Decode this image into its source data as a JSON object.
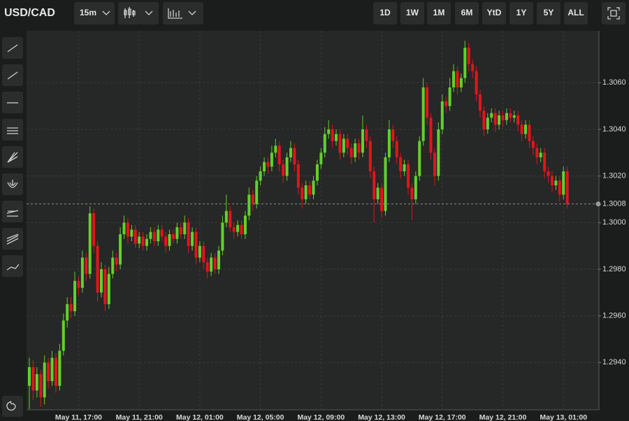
{
  "toolbar": {
    "symbol": "USD/CAD",
    "interval": "15m",
    "ranges": [
      "1D",
      "1W",
      "1M",
      "6M",
      "YtD",
      "1Y",
      "5Y",
      "ALL"
    ]
  },
  "chart_data": {
    "type": "candlestick",
    "up_color": "#62d12c",
    "down_color": "#e3141c",
    "grid": true,
    "ylim": [
      1.292,
      1.3082
    ],
    "yticks": [
      {
        "value": 1.294,
        "label": "1.2940"
      },
      {
        "value": 1.296,
        "label": "1.2960"
      },
      {
        "value": 1.298,
        "label": "1.2980"
      },
      {
        "value": 1.3,
        "label": "1.3000"
      },
      {
        "value": 1.302,
        "label": "1.3020"
      },
      {
        "value": 1.304,
        "label": "1.3040"
      },
      {
        "value": 1.306,
        "label": "1.3060"
      }
    ],
    "last_price": 1.3008,
    "categories": [
      null,
      null,
      null,
      null,
      null,
      null,
      null,
      null,
      null,
      null,
      null,
      null,
      null,
      "May 11, 17:00",
      null,
      null,
      null,
      null,
      null,
      null,
      null,
      null,
      null,
      null,
      null,
      null,
      null,
      null,
      null,
      "May 11, 21:00",
      null,
      null,
      null,
      null,
      null,
      null,
      null,
      null,
      null,
      null,
      null,
      null,
      null,
      null,
      null,
      "May 12, 01:00",
      null,
      null,
      null,
      null,
      null,
      null,
      null,
      null,
      null,
      null,
      null,
      null,
      null,
      null,
      null,
      "May 12, 05:00",
      null,
      null,
      null,
      null,
      null,
      null,
      null,
      null,
      null,
      null,
      null,
      null,
      null,
      null,
      null,
      "May 12, 09:00",
      null,
      null,
      null,
      null,
      null,
      null,
      null,
      null,
      null,
      null,
      null,
      null,
      null,
      null,
      null,
      "May 12, 13:00",
      null,
      null,
      null,
      null,
      null,
      null,
      null,
      null,
      null,
      null,
      null,
      null,
      null,
      null,
      null,
      "May 12, 17:00",
      null,
      null,
      null,
      null,
      null,
      null,
      null,
      null,
      null,
      null,
      null,
      null,
      null,
      null,
      null,
      "May 12, 21:00",
      null,
      null,
      null,
      null,
      null,
      null,
      null,
      null,
      null,
      null,
      null,
      null,
      null,
      null,
      null,
      "May 13, 01:00",
      null
    ],
    "ohlc": [
      [
        1.293,
        1.2942,
        1.292,
        1.2938
      ],
      [
        1.2938,
        1.2941,
        1.2924,
        1.2928
      ],
      [
        1.2928,
        1.2938,
        1.2925,
        1.2935
      ],
      [
        1.2935,
        1.2937,
        1.2921,
        1.2925
      ],
      [
        1.2925,
        1.2943,
        1.2922,
        1.294
      ],
      [
        1.294,
        1.2942,
        1.2929,
        1.2932
      ],
      [
        1.2932,
        1.2945,
        1.293,
        1.2942
      ],
      [
        1.2942,
        1.2944,
        1.2927,
        1.293
      ],
      [
        1.293,
        1.2948,
        1.2928,
        1.2945
      ],
      [
        1.2945,
        1.2961,
        1.2943,
        1.2958
      ],
      [
        1.2958,
        1.2968,
        1.2955,
        1.2965
      ],
      [
        1.2965,
        1.2968,
        1.2959,
        1.2962
      ],
      [
        1.2962,
        1.2979,
        1.296,
        1.2975
      ],
      [
        1.2975,
        1.2977,
        1.2969,
        1.2972
      ],
      [
        1.2972,
        1.2988,
        1.297,
        1.2985
      ],
      [
        1.2985,
        1.2987,
        1.2975,
        1.2978
      ],
      [
        1.2978,
        1.3007,
        1.2976,
        1.3004
      ],
      [
        1.3004,
        1.3006,
        1.2987,
        1.299
      ],
      [
        1.299,
        1.2992,
        1.2966,
        1.297
      ],
      [
        1.297,
        1.2983,
        1.2968,
        1.298
      ],
      [
        1.298,
        1.2982,
        1.2962,
        1.2965
      ],
      [
        1.2965,
        1.2981,
        1.2963,
        1.2978
      ],
      [
        1.2978,
        1.2988,
        1.2976,
        1.2985
      ],
      [
        1.2985,
        1.2987,
        1.2979,
        1.2982
      ],
      [
        1.2982,
        1.2998,
        1.298,
        1.2995
      ],
      [
        1.2995,
        1.3003,
        1.2993,
        1.3
      ],
      [
        1.3,
        1.3002,
        1.2991,
        1.2994
      ],
      [
        1.2994,
        1.2999,
        1.2992,
        1.2997
      ],
      [
        1.2997,
        1.2999,
        1.2989,
        1.2991
      ],
      [
        1.2991,
        1.2996,
        1.2989,
        1.2994
      ],
      [
        1.2994,
        1.2996,
        1.2988,
        1.299
      ],
      [
        1.299,
        1.2995,
        1.2988,
        1.2993
      ],
      [
        1.2993,
        1.2998,
        1.2991,
        1.2996
      ],
      [
        1.2996,
        1.2998,
        1.299,
        1.2992
      ],
      [
        1.2992,
        1.2999,
        1.299,
        1.2997
      ],
      [
        1.2997,
        1.2999,
        1.2992,
        1.2994
      ],
      [
        1.2994,
        1.2996,
        1.2987,
        1.299
      ],
      [
        1.299,
        1.2997,
        1.2988,
        1.2995
      ],
      [
        1.2995,
        1.2997,
        1.2991,
        1.2993
      ],
      [
        1.2993,
        1.3,
        1.2991,
        1.2998
      ],
      [
        1.2998,
        1.3,
        1.2993,
        1.2995
      ],
      [
        1.2995,
        1.3003,
        1.2993,
        1.3
      ],
      [
        1.3,
        1.3002,
        1.2987,
        1.299
      ],
      [
        1.299,
        1.2998,
        1.2988,
        1.2996
      ],
      [
        1.2996,
        1.2998,
        1.2982,
        1.2985
      ],
      [
        1.2985,
        1.2992,
        1.2983,
        1.299
      ],
      [
        1.299,
        1.2992,
        1.298,
        1.2983
      ],
      [
        1.2983,
        1.2985,
        1.2976,
        1.2979
      ],
      [
        1.2979,
        1.2987,
        1.2977,
        1.2985
      ],
      [
        1.2985,
        1.2987,
        1.2978,
        1.298
      ],
      [
        1.298,
        1.299,
        1.2978,
        1.2988
      ],
      [
        1.2988,
        1.3003,
        1.2986,
        1.3
      ],
      [
        1.3,
        1.3012,
        1.2998,
        1.3005
      ],
      [
        1.3005,
        1.3007,
        1.2996,
        1.2998
      ],
      [
        1.2998,
        1.3,
        1.2993,
        1.2996
      ],
      [
        1.2996,
        1.3001,
        1.2994,
        1.2999
      ],
      [
        1.2999,
        1.3001,
        1.2993,
        1.2995
      ],
      [
        1.2995,
        1.3005,
        1.2993,
        1.3003
      ],
      [
        1.3003,
        1.3015,
        1.3001,
        1.3012
      ],
      [
        1.3012,
        1.3014,
        1.3005,
        1.3008
      ],
      [
        1.3008,
        1.302,
        1.3006,
        1.3018
      ],
      [
        1.3018,
        1.3024,
        1.3016,
        1.3022
      ],
      [
        1.3022,
        1.3028,
        1.302,
        1.3026
      ],
      [
        1.3026,
        1.3028,
        1.3021,
        1.3024
      ],
      [
        1.3024,
        1.3033,
        1.3022,
        1.303
      ],
      [
        1.303,
        1.3036,
        1.3028,
        1.3033
      ],
      [
        1.3033,
        1.3035,
        1.3022,
        1.3025
      ],
      [
        1.3025,
        1.3027,
        1.3017,
        1.302
      ],
      [
        1.302,
        1.303,
        1.3018,
        1.3028
      ],
      [
        1.3028,
        1.3035,
        1.3026,
        1.3032
      ],
      [
        1.3032,
        1.3034,
        1.3022,
        1.3025
      ],
      [
        1.3025,
        1.3027,
        1.3012,
        1.3015
      ],
      [
        1.3015,
        1.3017,
        1.3006,
        1.301
      ],
      [
        1.301,
        1.3018,
        1.3008,
        1.3016
      ],
      [
        1.3016,
        1.3018,
        1.301,
        1.3012
      ],
      [
        1.3012,
        1.302,
        1.301,
        1.3018
      ],
      [
        1.3018,
        1.3027,
        1.3016,
        1.3025
      ],
      [
        1.3025,
        1.3032,
        1.3023,
        1.303
      ],
      [
        1.303,
        1.3041,
        1.3028,
        1.3038
      ],
      [
        1.3038,
        1.3044,
        1.3036,
        1.304
      ],
      [
        1.304,
        1.3042,
        1.3032,
        1.3035
      ],
      [
        1.3035,
        1.304,
        1.3033,
        1.3038
      ],
      [
        1.3038,
        1.304,
        1.3027,
        1.303
      ],
      [
        1.303,
        1.3038,
        1.3028,
        1.3036
      ],
      [
        1.3036,
        1.3038,
        1.3029,
        1.3032
      ],
      [
        1.3032,
        1.3034,
        1.3025,
        1.3028
      ],
      [
        1.3028,
        1.3036,
        1.3026,
        1.3034
      ],
      [
        1.3034,
        1.3036,
        1.3027,
        1.303
      ],
      [
        1.303,
        1.3046,
        1.3028,
        1.304
      ],
      [
        1.304,
        1.3042,
        1.3032,
        1.3035
      ],
      [
        1.3035,
        1.3037,
        1.3019,
        1.3022
      ],
      [
        1.3022,
        1.3024,
        1.3,
        1.301
      ],
      [
        1.301,
        1.3017,
        1.3008,
        1.3015
      ],
      [
        1.3015,
        1.3017,
        1.3002,
        1.3005
      ],
      [
        1.3005,
        1.303,
        1.3003,
        1.3028
      ],
      [
        1.3028,
        1.3044,
        1.3026,
        1.304
      ],
      [
        1.304,
        1.3042,
        1.3032,
        1.3035
      ],
      [
        1.3035,
        1.3037,
        1.3025,
        1.3028
      ],
      [
        1.3028,
        1.303,
        1.3019,
        1.3022
      ],
      [
        1.3022,
        1.3027,
        1.302,
        1.3025
      ],
      [
        1.3025,
        1.3027,
        1.3012,
        1.3015
      ],
      [
        1.3015,
        1.3017,
        1.3001,
        1.301
      ],
      [
        1.301,
        1.3022,
        1.3008,
        1.302
      ],
      [
        1.302,
        1.3037,
        1.3018,
        1.3035
      ],
      [
        1.3035,
        1.3062,
        1.3033,
        1.3058
      ],
      [
        1.3058,
        1.306,
        1.3042,
        1.3045
      ],
      [
        1.3045,
        1.3047,
        1.3027,
        1.303
      ],
      [
        1.303,
        1.3032,
        1.3016,
        1.302
      ],
      [
        1.302,
        1.3043,
        1.3018,
        1.304
      ],
      [
        1.304,
        1.3055,
        1.3038,
        1.3052
      ],
      [
        1.3052,
        1.3054,
        1.3047,
        1.305
      ],
      [
        1.305,
        1.3062,
        1.3048,
        1.3058
      ],
      [
        1.3058,
        1.3068,
        1.3056,
        1.3065
      ],
      [
        1.3065,
        1.3067,
        1.3055,
        1.3058
      ],
      [
        1.3058,
        1.3064,
        1.3056,
        1.3062
      ],
      [
        1.3062,
        1.3078,
        1.306,
        1.3075
      ],
      [
        1.3075,
        1.3077,
        1.3065,
        1.3068
      ],
      [
        1.3068,
        1.307,
        1.3062,
        1.3065
      ],
      [
        1.3065,
        1.3067,
        1.3052,
        1.3055
      ],
      [
        1.3055,
        1.3057,
        1.3045,
        1.3048
      ],
      [
        1.3048,
        1.305,
        1.3037,
        1.304
      ],
      [
        1.304,
        1.3047,
        1.3038,
        1.3045
      ],
      [
        1.3045,
        1.3049,
        1.3043,
        1.3047
      ],
      [
        1.3047,
        1.3049,
        1.3039,
        1.3042
      ],
      [
        1.3042,
        1.3048,
        1.304,
        1.3046
      ],
      [
        1.3046,
        1.3048,
        1.3041,
        1.3044
      ],
      [
        1.3044,
        1.3049,
        1.3042,
        1.3047
      ],
      [
        1.3047,
        1.3049,
        1.3043,
        1.3045
      ],
      [
        1.3045,
        1.3048,
        1.3043,
        1.3046
      ],
      [
        1.3046,
        1.3048,
        1.3039,
        1.3042
      ],
      [
        1.3042,
        1.3044,
        1.3035,
        1.3038
      ],
      [
        1.3038,
        1.3044,
        1.3036,
        1.3042
      ],
      [
        1.3042,
        1.3044,
        1.3032,
        1.3035
      ],
      [
        1.3035,
        1.3037,
        1.3029,
        1.3032
      ],
      [
        1.3032,
        1.3034,
        1.3025,
        1.3028
      ],
      [
        1.3028,
        1.3032,
        1.3026,
        1.303
      ],
      [
        1.303,
        1.3032,
        1.3019,
        1.3022
      ],
      [
        1.3022,
        1.3024,
        1.3017,
        1.302
      ],
      [
        1.302,
        1.3022,
        1.3013,
        1.3016
      ],
      [
        1.3016,
        1.302,
        1.3014,
        1.3018
      ],
      [
        1.3018,
        1.302,
        1.3009,
        1.3012
      ],
      [
        1.3012,
        1.3024,
        1.301,
        1.3022
      ],
      [
        1.3022,
        1.3024,
        1.3006,
        1.3008
      ]
    ]
  }
}
